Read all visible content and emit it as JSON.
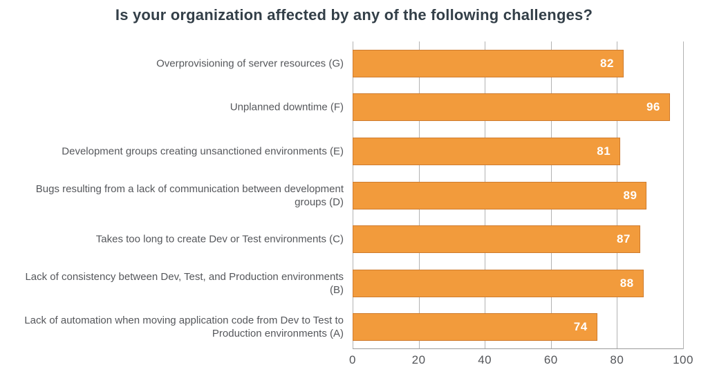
{
  "chart_data": {
    "type": "bar",
    "orientation": "horizontal",
    "title": "Is your organization affected by any of the following challenges?",
    "categories": [
      "Overprovisioning of server resources (G)",
      "Unplanned downtime (F)",
      "Development groups creating unsanctioned environments (E)",
      "Bugs resulting from a lack of communication between development groups (D)",
      "Takes too long to create Dev or Test environments (C)",
      "Lack of consistency between Dev, Test, and Production environments (B)",
      "Lack of automation when moving application code from Dev to Test to Production environments (A)"
    ],
    "values": [
      82,
      96,
      81,
      89,
      87,
      88,
      74
    ],
    "value_labels": [
      "82",
      "96",
      "81",
      "89",
      "87",
      "88",
      "74"
    ],
    "xlim": [
      0,
      100
    ],
    "xticks": [
      0,
      20,
      40,
      60,
      80,
      100
    ],
    "xtick_labels": [
      "0",
      "20",
      "40",
      "60",
      "80",
      "100"
    ],
    "xlabel": "",
    "ylabel": "",
    "grid": "vertical-only",
    "legend": "none",
    "colors": {
      "bar_fill": "#F29B3C",
      "bar_border": "#CE7B2E",
      "value_text": "#FFFFFF",
      "gridline": "#B2B2B2",
      "axis_line": "#9A9A9A",
      "title_text": "#333F48",
      "category_label_text": "#55575B",
      "tick_label_text": "#54565A",
      "background": "#FFFFFF"
    }
  }
}
